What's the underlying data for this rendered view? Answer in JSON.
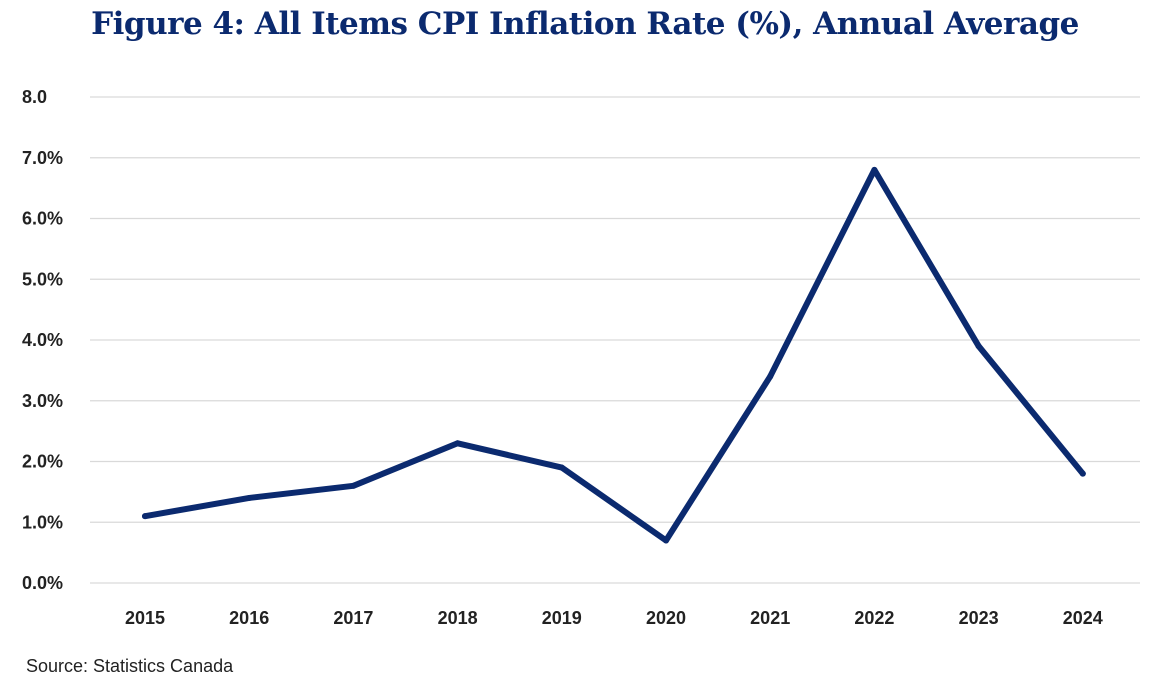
{
  "chart_data": {
    "type": "line",
    "title": "Figure 4: All Items CPI Inflation Rate (%), Annual Average",
    "xlabel": "",
    "ylabel": "",
    "categories": [
      "2015",
      "2016",
      "2017",
      "2018",
      "2019",
      "2020",
      "2021",
      "2022",
      "2023",
      "2024"
    ],
    "series": [
      {
        "values": [
          1.1,
          1.4,
          1.6,
          2.3,
          1.9,
          0.7,
          3.4,
          6.8,
          3.9,
          1.8
        ],
        "color": "#0b2a6f"
      }
    ],
    "ylim": [
      0,
      8
    ],
    "yticks": [
      0,
      1,
      2,
      3,
      4,
      5,
      6,
      7,
      8
    ],
    "ytick_labels": [
      "0.0%",
      "1.0%",
      "2.0%",
      "3.0%",
      "4.0%",
      "5.0%",
      "6.0%",
      "7.0%",
      "8.0"
    ],
    "grid": true,
    "legend": "none"
  },
  "source": "Source: Statistics Canada"
}
